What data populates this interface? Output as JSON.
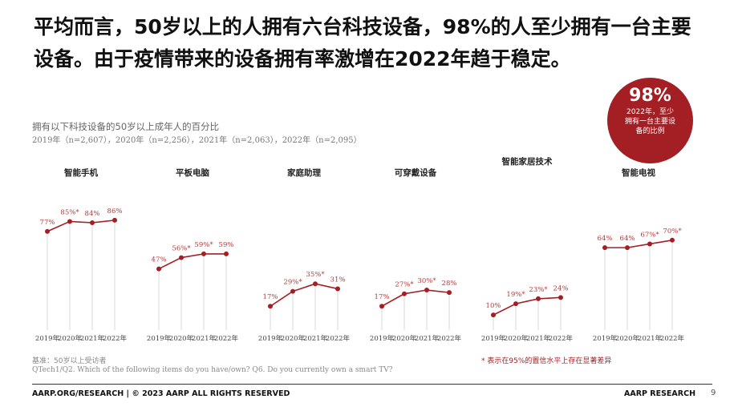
{
  "headline": "平均而言，50岁以上的人拥有六台科技设备，98%的人至少拥有一台主要设备。由于疫情带来的设备拥有率激增在2022年趋于稳定。",
  "badge": {
    "percent": "98%",
    "text": "2022年，至少拥有一台主要设备的比例"
  },
  "subtitle": "拥有以下科技设备的50岁以上成年人的百分比",
  "sample_sizes": "2019年（n=2,607），2020年（n=2,256），2021年（n=2,063），2022年（n=2,095）",
  "chart_data": {
    "type": "line",
    "x": [
      "2019年",
      "2020年",
      "2021年",
      "2022年"
    ],
    "ylim": [
      0,
      100
    ],
    "series": [
      {
        "name": "智能手机",
        "values": [
          77,
          85,
          84,
          86
        ],
        "labels": [
          "77%",
          "85%*",
          "84%",
          "86%"
        ]
      },
      {
        "name": "平板电脑",
        "values": [
          47,
          56,
          59,
          59
        ],
        "labels": [
          "47%",
          "56%*",
          "59%*",
          "59%"
        ]
      },
      {
        "name": "家庭助理",
        "values": [
          17,
          29,
          35,
          31
        ],
        "labels": [
          "17%",
          "29%*",
          "35%*",
          "31%"
        ]
      },
      {
        "name": "可穿戴设备",
        "values": [
          17,
          27,
          30,
          28
        ],
        "labels": [
          "17%",
          "27%*",
          "30%*",
          "28%"
        ]
      },
      {
        "name": "智能家居技术",
        "values": [
          10,
          19,
          23,
          24
        ],
        "labels": [
          "10%",
          "19%*",
          "23%*",
          "24%"
        ]
      },
      {
        "name": "智能电视",
        "values": [
          64,
          64,
          67,
          70
        ],
        "labels": [
          "64%",
          "64%",
          "67%*",
          "70%*"
        ]
      }
    ]
  },
  "notes": {
    "base": "基准：50岁以上受访者",
    "question": "QTech1/Q2. Which of the following items do you have/own? Q6. Do you currently own a smart TV?",
    "significance": "* 表示在95%的置信水平上存在显著差异"
  },
  "footer": {
    "left": "AARP.ORG/RESEARCH | © 2023 AARP ALL RIGHTS RESERVED",
    "right": "AARP RESEARCH",
    "page": "9"
  },
  "colors": {
    "accent": "#a41f24",
    "grid": "#d9d9d9",
    "label": "#b03a3a"
  }
}
